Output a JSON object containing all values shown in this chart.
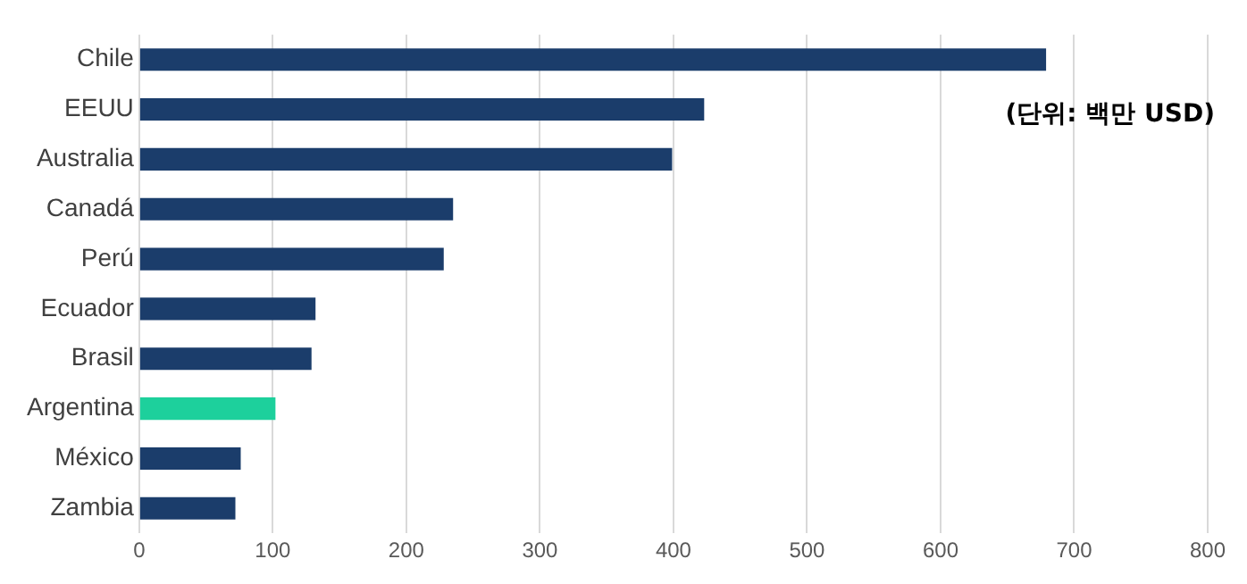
{
  "chart_data": {
    "type": "bar",
    "orientation": "horizontal",
    "categories": [
      "Chile",
      "EEUU",
      "Australia",
      "Canadá",
      "Perú",
      "Ecuador",
      "Brasil",
      "Argentina",
      "México",
      "Zambia"
    ],
    "values": [
      679,
      423,
      399,
      235,
      228,
      132,
      129,
      102,
      76,
      72
    ],
    "colors": [
      "#1b3d6b",
      "#1b3d6b",
      "#1b3d6b",
      "#1b3d6b",
      "#1b3d6b",
      "#1b3d6b",
      "#1b3d6b",
      "#1dd09c",
      "#1b3d6b",
      "#1b3d6b"
    ],
    "xlim": [
      0,
      800
    ],
    "xticks": [
      0,
      100,
      200,
      300,
      400,
      500,
      600,
      700,
      800
    ],
    "grid": "x",
    "legend": false,
    "annotations": [
      "(단위: 백만 USD)"
    ]
  }
}
